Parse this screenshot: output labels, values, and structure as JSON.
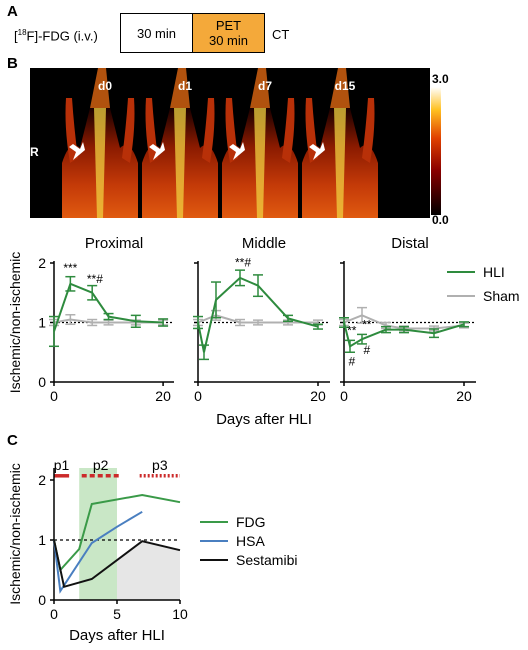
{
  "panels": {
    "a": "A",
    "b": "B",
    "c": "C"
  },
  "protocol": {
    "tracer": "[18F]-FDG (i.v.)",
    "tracer_sup": "18",
    "tracer_pre": "[",
    "tracer_post": "F]-FDG (i.v.)",
    "uptake": "30 min",
    "pet_line1": "PET",
    "pet_line2": "30 min",
    "ct": "CT"
  },
  "imaging": {
    "days": [
      "d0",
      "d1",
      "d7",
      "d15"
    ],
    "side_label": "R",
    "colorbar": {
      "max": "3.0",
      "min": "0.0"
    }
  },
  "colors": {
    "hli": "#2e8b3e",
    "sham": "#b0b0b0",
    "fdg": "#3a9a48",
    "hsa": "#4a7fc0",
    "sestamibi": "#111111",
    "p1": "#cc2a2a",
    "highlight": "#c9e7c6",
    "shade": "#e6e6e6",
    "pet_box": "#f4a93a"
  },
  "chart_data": [
    {
      "type": "line",
      "title": "Proximal",
      "xlabel": "",
      "ylabel": "Ischemic/non-ischemic",
      "xlim": [
        0,
        22
      ],
      "ylim": [
        0,
        2
      ],
      "xticks": [
        0,
        20
      ],
      "yticks": [
        0,
        1,
        2
      ],
      "reference_line": 1,
      "series": [
        {
          "name": "HLI",
          "x": [
            0,
            3,
            7,
            10,
            15,
            20
          ],
          "y": [
            0.85,
            1.65,
            1.5,
            1.1,
            1.02,
            1.0
          ],
          "err": [
            0.25,
            0.12,
            0.12,
            0.05,
            0.1,
            0.06
          ]
        },
        {
          "name": "Sham",
          "x": [
            0,
            3,
            7,
            10,
            15,
            20
          ],
          "y": [
            1.0,
            1.05,
            1.0,
            1.0,
            1.0,
            1.0
          ],
          "err": [
            0.05,
            0.08,
            0.05,
            0.04,
            0.04,
            0.04
          ]
        }
      ],
      "annotations": [
        {
          "x": 3,
          "y": 1.85,
          "text": "***"
        },
        {
          "x": 7.5,
          "y": 1.66,
          "text": "**#"
        }
      ]
    },
    {
      "type": "line",
      "title": "Middle",
      "xlabel": "Days after HLI",
      "xlim": [
        0,
        22
      ],
      "ylim": [
        0,
        2
      ],
      "xticks": [
        0,
        20
      ],
      "reference_line": 1,
      "series": [
        {
          "name": "HLI",
          "x": [
            0,
            1,
            3,
            7,
            10,
            15,
            20
          ],
          "y": [
            1.0,
            0.5,
            1.38,
            1.75,
            1.62,
            1.07,
            0.93
          ],
          "err": [
            0.1,
            0.12,
            0.3,
            0.13,
            0.18,
            0.05,
            0.04
          ]
        },
        {
          "name": "Sham",
          "x": [
            0,
            3,
            7,
            10,
            15,
            20
          ],
          "y": [
            1.0,
            1.12,
            1.0,
            1.0,
            1.0,
            1.0
          ],
          "err": [
            0.05,
            0.08,
            0.05,
            0.04,
            0.04,
            0.04
          ]
        }
      ],
      "annotations": [
        {
          "x": 7.5,
          "y": 1.94,
          "text": "**#"
        }
      ]
    },
    {
      "type": "line",
      "title": "Distal",
      "xlim": [
        0,
        22
      ],
      "ylim": [
        0,
        2
      ],
      "xticks": [
        0,
        20
      ],
      "reference_line": 1,
      "series": [
        {
          "name": "HLI",
          "x": [
            0,
            1,
            3,
            7,
            10,
            15,
            20
          ],
          "y": [
            1.0,
            0.6,
            0.72,
            0.88,
            0.88,
            0.82,
            0.97
          ],
          "err": [
            0.08,
            0.1,
            0.08,
            0.05,
            0.05,
            0.07,
            0.04
          ]
        },
        {
          "name": "Sham",
          "x": [
            0,
            3,
            7,
            10,
            15,
            20
          ],
          "y": [
            1.0,
            1.12,
            0.95,
            0.9,
            0.9,
            0.95
          ],
          "err": [
            0.05,
            0.13,
            0.05,
            0.04,
            0.04,
            0.04
          ]
        }
      ],
      "annotations": [
        {
          "x": 1.3,
          "y": 0.8,
          "text": "**"
        },
        {
          "x": 3.8,
          "y": 0.9,
          "text": "**"
        },
        {
          "x": 3.8,
          "y": 0.47,
          "text": "#"
        },
        {
          "x": 1.3,
          "y": 0.28,
          "text": "#"
        }
      ]
    },
    {
      "type": "line",
      "xlabel": "Days after HLI",
      "ylabel": "Ischemic/non-ischemic",
      "xlim": [
        0,
        10
      ],
      "ylim": [
        0,
        2.2
      ],
      "xticks": [
        0,
        5,
        10
      ],
      "yticks": [
        0,
        1,
        2
      ],
      "reference_line": 1,
      "phases": [
        {
          "name": "p1",
          "x": [
            0,
            1.2
          ],
          "style": "solid"
        },
        {
          "name": "p2",
          "x": [
            2.2,
            5.2
          ],
          "style": "dashed"
        },
        {
          "name": "p3",
          "x": [
            6.8,
            10
          ],
          "style": "dotted"
        }
      ],
      "highlight_x": [
        2,
        5
      ],
      "shade_x": [
        5,
        10
      ],
      "series": [
        {
          "name": "FDG",
          "x": [
            0,
            0.5,
            2,
            3,
            7,
            10
          ],
          "y": [
            1.0,
            0.5,
            0.85,
            1.6,
            1.75,
            1.63
          ]
        },
        {
          "name": "HSA",
          "x": [
            0,
            0.5,
            3,
            5,
            7
          ],
          "y": [
            1.0,
            0.15,
            0.95,
            1.22,
            1.47
          ]
        },
        {
          "name": "Sestamibi",
          "x": [
            0,
            0.8,
            3,
            7,
            10
          ],
          "y": [
            1.0,
            0.22,
            0.35,
            0.98,
            0.83
          ]
        }
      ]
    }
  ],
  "legend_b": [
    "HLI",
    "Sham"
  ],
  "legend_c": [
    "FDG",
    "HSA",
    "Sestamibi"
  ]
}
